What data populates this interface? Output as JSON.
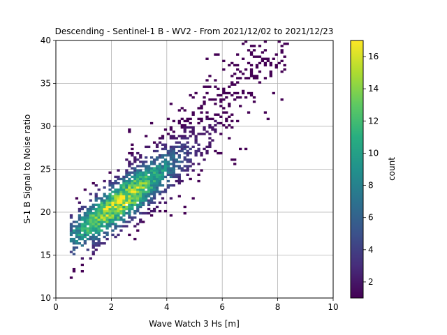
{
  "chart_data": {
    "type": "heatmap",
    "title": "Descending - Sentinel-1 B - WV2 - From 2021/12/02 to 2021/12/23",
    "xlabel": "Wave Watch 3 Hs [m]",
    "ylabel": "S-1 B Signal to Noise ratio",
    "xlim": [
      0,
      10
    ],
    "ylim": [
      10,
      40
    ],
    "xticks": [
      "0",
      "2",
      "4",
      "6",
      "8",
      "10"
    ],
    "yticks": [
      "10",
      "15",
      "20",
      "25",
      "30",
      "35",
      "40"
    ],
    "grid": true,
    "colorbar": {
      "label": "count",
      "range": [
        1,
        17
      ],
      "ticks": [
        "2",
        "4",
        "6",
        "8",
        "10",
        "12",
        "14",
        "16"
      ],
      "colormap": "viridis"
    },
    "bins": {
      "x_width": 0.1,
      "y_width": 0.25
    },
    "density_model": {
      "peak_count": 17,
      "center_hs": 2.25,
      "center_snr": 21.0,
      "occupied_hs_range": [
        0.5,
        8.3
      ],
      "occupied_snr_range": [
        13.5,
        39.3
      ]
    }
  }
}
